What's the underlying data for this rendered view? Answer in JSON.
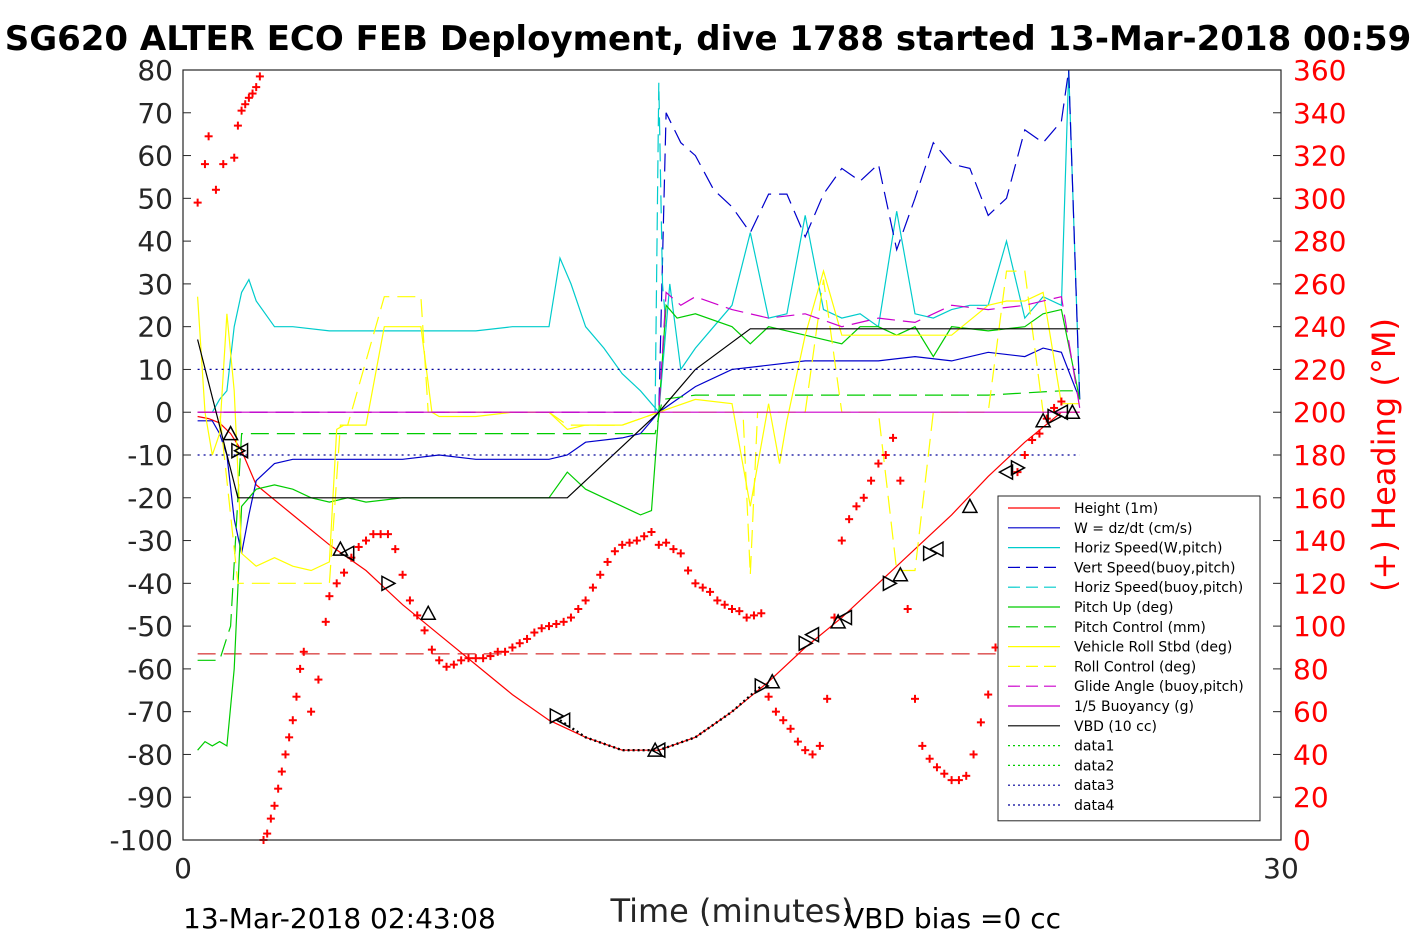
{
  "chart_data": {
    "type": "line",
    "title": "SG620 ALTER ECO FEB Deployment, dive 1788 started 13-Mar-2018 00:59",
    "xlabel": "Time (minutes)",
    "ylabel_right": "(+) Heading (°M)",
    "xlim": [
      0,
      30
    ],
    "ylim_left": [
      -100,
      80
    ],
    "ylim_right": [
      0,
      360
    ],
    "x_ticks": [
      "0",
      "30"
    ],
    "y_ticks_left": [
      "80",
      "70",
      "60",
      "50",
      "40",
      "30",
      "20",
      "10",
      "0",
      "-10",
      "-20",
      "-30",
      "-40",
      "-50",
      "-60",
      "-70",
      "-80",
      "-90",
      "-100"
    ],
    "y_ticks_right": [
      "360",
      "340",
      "320",
      "300",
      "280",
      "260",
      "240",
      "220",
      "200",
      "180",
      "160",
      "140",
      "120",
      "100",
      "80",
      "60",
      "40",
      "20",
      "0"
    ],
    "grid": false,
    "legend_position": "right-lower",
    "footer_left": "13-Mar-2018 02:43:08",
    "footer_right": "VBD bias =0 cc",
    "series": [
      {
        "name": "Height (1m)",
        "color": "#ff0000",
        "style": "solid",
        "x": [
          0.4,
          0.7,
          1.0,
          1.3,
          1.6,
          2.0,
          3.0,
          4.0,
          5.0,
          6.0,
          7.0,
          8.0,
          9.0,
          10.0,
          11.0,
          12.0,
          13.0,
          14.0,
          15.0,
          16.0,
          17.0,
          18.0,
          19.0,
          20.0,
          21.0,
          22.0,
          23.0,
          24.0,
          24.5
        ],
        "y": [
          -1,
          -1.5,
          -2.5,
          -5,
          -9,
          -17,
          -24,
          -31,
          -37,
          -45,
          -52,
          -59,
          -66,
          -72,
          -76,
          -79,
          -79,
          -76,
          -70,
          -63,
          -55,
          -48,
          -40,
          -32,
          -24,
          -15,
          -7,
          0,
          0
        ]
      },
      {
        "name": "W = dz/dt (cm/s)",
        "color": "#0000cc",
        "style": "solid",
        "x": [
          0.4,
          0.8,
          1.0,
          1.2,
          1.4,
          1.6,
          1.8,
          2.0,
          2.5,
          3.0,
          4.0,
          5.0,
          6.0,
          7.0,
          8.0,
          9.0,
          10.0,
          10.5,
          11.0,
          12.0,
          12.5,
          13.0,
          14.0,
          15.0,
          16.0,
          17.0,
          18.0,
          19.0,
          20.0,
          21.0,
          22.0,
          23.0,
          23.5,
          24.0,
          24.5
        ],
        "y": [
          -2,
          -2,
          -5,
          -10,
          -25,
          -33,
          -24,
          -16,
          -12,
          -11,
          -11,
          -11,
          -11,
          -10,
          -11,
          -11,
          -11,
          -10,
          -7,
          -6,
          -5,
          0,
          6,
          10,
          11,
          12,
          12,
          12,
          13,
          12,
          14,
          13,
          15,
          14,
          3
        ]
      },
      {
        "name": "Horiz Speed(W,pitch)",
        "color": "#00cccc",
        "style": "solid",
        "x": [
          0.4,
          0.8,
          1.0,
          1.2,
          1.4,
          1.6,
          1.8,
          2.0,
          2.5,
          3.0,
          4.0,
          5.0,
          6.0,
          7.0,
          8.0,
          9.0,
          10.0,
          10.3,
          10.6,
          11.0,
          11.5,
          12.0,
          12.5,
          13.0,
          13.3,
          13.6,
          14.0,
          14.5,
          15.0,
          15.5,
          16.0,
          16.5,
          17.0,
          17.5,
          18.0,
          18.5,
          19.0,
          19.5,
          20.0,
          20.5,
          21.0,
          21.5,
          22.0,
          22.5,
          23.0,
          23.5,
          24.0,
          24.2,
          24.5
        ],
        "y": [
          0,
          0,
          3,
          5,
          20,
          28,
          31,
          26,
          20,
          20,
          19,
          19,
          19,
          19,
          19,
          20,
          20,
          36,
          30,
          20,
          15,
          9,
          5,
          0,
          30,
          10,
          15,
          20,
          25,
          42,
          22,
          23,
          46,
          24,
          22,
          23,
          20,
          47,
          23,
          22,
          24,
          25,
          25,
          40,
          22,
          27,
          25,
          80,
          3
        ]
      },
      {
        "name": "Vert Speed(buoy,pitch)",
        "color": "#0000cc",
        "style": "dashed",
        "x": [
          0.4,
          1.0,
          12.8,
          13.0,
          13.2,
          13.6,
          14.0,
          14.5,
          15.0,
          15.5,
          16.0,
          16.5,
          17.0,
          17.5,
          18.0,
          18.5,
          19.0,
          19.5,
          20.0,
          20.5,
          21.0,
          21.5,
          22.0,
          22.5,
          23.0,
          23.5,
          24.0,
          24.2,
          24.5
        ],
        "y": [
          0,
          0,
          0,
          0,
          70,
          63,
          60,
          52,
          48,
          42,
          51,
          51,
          41,
          51,
          57,
          54,
          58,
          38,
          50,
          63,
          58,
          57,
          46,
          50,
          66,
          63,
          68,
          80,
          3
        ]
      },
      {
        "name": "Horiz Speed(buoy,pitch)",
        "color": "#00cccc",
        "style": "dashed",
        "x": [
          12.9,
          13.0,
          13.1,
          13.2
        ],
        "y": [
          0,
          77,
          30,
          20
        ]
      },
      {
        "name": "Pitch Up (deg)",
        "color": "#00cc00",
        "style": "solid",
        "x": [
          0.4,
          0.6,
          0.8,
          1.0,
          1.2,
          1.4,
          1.6,
          1.8,
          2.0,
          2.5,
          3.0,
          3.5,
          4.0,
          4.5,
          5.0,
          6.0,
          7.0,
          8.0,
          9.0,
          10.0,
          10.5,
          11.0,
          11.5,
          12.0,
          12.5,
          12.8,
          13.0,
          13.2,
          13.5,
          14.0,
          15.0,
          15.5,
          16.0,
          17.0,
          18.0,
          18.5,
          19.0,
          19.5,
          20.0,
          20.5,
          21.0,
          22.0,
          23.0,
          23.5,
          24.0,
          24.5
        ],
        "y": [
          -79,
          -77,
          -78,
          -77,
          -78,
          -60,
          -22,
          -20,
          -18,
          -17,
          -18,
          -20,
          -21,
          -20,
          -21,
          -20,
          -20,
          -20,
          -20,
          -20,
          -14,
          -18,
          -20,
          -22,
          -24,
          -23,
          0,
          25,
          22,
          23,
          20,
          16,
          20,
          18,
          16,
          20,
          20,
          18,
          20,
          13,
          20,
          19,
          20,
          23,
          24,
          3
        ]
      },
      {
        "name": "Pitch Control (mm)",
        "color": "#00cc00",
        "style": "dashed",
        "x": [
          0.4,
          1.0,
          1.3,
          1.6,
          2.0,
          4.0,
          6.0,
          8.0,
          10.0,
          12.0,
          12.9,
          13.1,
          14.0,
          16.0,
          18.0,
          20.0,
          22.0,
          24.0,
          24.5
        ],
        "y": [
          -58,
          -58,
          -50,
          -5,
          -5,
          -5,
          -5,
          -5,
          -5,
          -5,
          -5,
          3,
          4,
          4,
          4,
          4,
          4,
          5,
          5
        ]
      },
      {
        "name": "Vehicle Roll Stbd (deg)",
        "color": "#ffff00",
        "style": "solid",
        "x": [
          0.4,
          0.6,
          0.8,
          1.0,
          1.2,
          1.4,
          1.6,
          2.0,
          2.5,
          3.0,
          3.5,
          4.0,
          4.2,
          4.4,
          5.0,
          5.5,
          6.0,
          6.5,
          6.8,
          7.0,
          8.0,
          9.0,
          10.0,
          10.5,
          11.0,
          12.0,
          13.0,
          14.0,
          15.0,
          15.5,
          16.0,
          16.3,
          16.5,
          17.0,
          17.5,
          18.0,
          19.0,
          19.5,
          20.0,
          20.5,
          21.0,
          22.0,
          22.5,
          23.0,
          23.5,
          24.0,
          24.5
        ],
        "y": [
          27,
          0,
          -10,
          -5,
          23,
          5,
          -33,
          -36,
          -34,
          -36,
          -37,
          -35,
          -4,
          -3,
          -3,
          20,
          20,
          20,
          0,
          -1,
          -1,
          0,
          0,
          -4,
          -3,
          -3,
          0,
          3,
          2,
          -22,
          2,
          -12,
          -2,
          18,
          33,
          18,
          18,
          18,
          18,
          18,
          18,
          25,
          26,
          26,
          28,
          2,
          2
        ]
      },
      {
        "name": "Roll Control (deg)",
        "color": "#ffff00",
        "style": "dashed",
        "x": [
          0.4,
          1.0,
          1.5,
          2.0,
          3.0,
          4.0,
          4.3,
          4.5,
          5.5,
          6.0,
          6.5,
          6.7,
          7.0,
          8.0,
          9.0,
          10.0,
          10.5,
          11.0,
          12.0,
          13.0,
          14.0,
          15.0,
          15.3,
          15.5,
          15.7,
          16.0,
          17.0,
          17.5,
          18.0,
          19.0,
          19.5,
          20.0,
          20.5,
          21.0,
          22.0,
          22.5,
          23.0,
          23.5,
          24.0,
          24.5
        ],
        "y": [
          0,
          0,
          -40,
          -40,
          -40,
          -40,
          -3,
          -3,
          27,
          27,
          27,
          0,
          0,
          0,
          0,
          0,
          -3,
          -3,
          -3,
          0,
          0,
          0,
          0,
          -38,
          0,
          0,
          0,
          31,
          0,
          0,
          -37,
          -37,
          0,
          0,
          0,
          33,
          33,
          0,
          0,
          0
        ]
      },
      {
        "name": "Glide Angle (buoy,pitch)",
        "color": "#cc00cc",
        "style": "dashed",
        "x": [
          0.4,
          13.0,
          13.2,
          13.6,
          14.0,
          15.0,
          16.0,
          17.0,
          18.0,
          19.0,
          20.0,
          21.0,
          22.0,
          23.0,
          24.0,
          24.5
        ],
        "y": [
          0,
          0,
          28,
          25,
          27,
          24,
          22,
          23,
          20,
          22,
          21,
          25,
          24,
          25,
          27,
          1
        ]
      },
      {
        "name": "1/5 Buoyancy (g)",
        "color": "#cc00cc",
        "style": "solid",
        "x": [
          0.4,
          24.5
        ],
        "y": [
          0,
          0
        ]
      },
      {
        "name": "VBD (10 cc)",
        "color": "#000000",
        "style": "solid",
        "x": [
          0.4,
          1.5,
          3.0,
          5.0,
          8.0,
          10.5,
          11.5,
          13.0,
          14.0,
          15.5,
          17.0,
          20.0,
          24.5
        ],
        "y": [
          17,
          -20,
          -20,
          -20,
          -20,
          -20,
          -12,
          0,
          10,
          19.5,
          19.5,
          19.5,
          19.5
        ]
      },
      {
        "name": "data1",
        "color": "#00cc00",
        "style": "dotted",
        "x": [],
        "y": []
      },
      {
        "name": "data2",
        "color": "#00cc00",
        "style": "dotted",
        "x": [],
        "y": []
      },
      {
        "name": "data3",
        "color": "#000099",
        "style": "dotted",
        "x": [
          0.4,
          24.5
        ],
        "y": [
          10,
          10
        ]
      },
      {
        "name": "data4",
        "color": "#000099",
        "style": "dotted",
        "x": [
          0.4,
          24.5
        ],
        "y": [
          -10,
          -10
        ]
      }
    ],
    "reference_line": {
      "color": "#cc0000",
      "style": "dashed",
      "y": -56.5
    },
    "dotted_overlay": {
      "color": "#000000",
      "x": [
        10.3,
        11.0,
        12.0,
        13.0,
        14.0,
        15.0,
        15.8
      ],
      "y": [
        -72,
        -76,
        -79,
        -79,
        -76,
        -70,
        -64
      ]
    },
    "heading_markers": {
      "color": "#ff0000",
      "marker": "+",
      "x": [
        0.4,
        0.6,
        0.7,
        0.9,
        1.1,
        1.4,
        1.5,
        1.6,
        1.7,
        1.8,
        1.9,
        2.0,
        2.1,
        2.2,
        2.3,
        2.4,
        2.5,
        2.6,
        2.7,
        2.8,
        2.9,
        3.0,
        3.1,
        3.2,
        3.3,
        3.5,
        3.7,
        3.9,
        4.0,
        4.2,
        4.4,
        4.6,
        4.8,
        5.0,
        5.2,
        5.4,
        5.6,
        5.8,
        6.0,
        6.2,
        6.4,
        6.6,
        6.8,
        7.0,
        7.2,
        7.4,
        7.6,
        7.8,
        8.0,
        8.2,
        8.4,
        8.6,
        8.8,
        9.0,
        9.2,
        9.4,
        9.6,
        9.8,
        10.0,
        10.2,
        10.4,
        10.6,
        10.8,
        11.0,
        11.2,
        11.4,
        11.6,
        11.8,
        12.0,
        12.2,
        12.4,
        12.6,
        12.8,
        13.0,
        13.2,
        13.4,
        13.6,
        13.8,
        14.0,
        14.2,
        14.4,
        14.6,
        14.8,
        15.0,
        15.2,
        15.4,
        15.6,
        15.8,
        16.0,
        16.2,
        16.4,
        16.6,
        16.8,
        17.0,
        17.2,
        17.4,
        17.6,
        17.8,
        18.0,
        18.2,
        18.4,
        18.6,
        18.8,
        19.0,
        19.2,
        19.4,
        19.6,
        19.8,
        20.0,
        20.2,
        20.4,
        20.6,
        20.8,
        21.0,
        21.2,
        21.4,
        21.6,
        21.8,
        22.0,
        22.2,
        22.4,
        22.6,
        22.8,
        23.0,
        23.2,
        23.4,
        23.6,
        23.8,
        24.0
      ],
      "y": [
        298,
        316,
        329,
        304,
        316,
        319,
        334,
        341,
        344,
        347,
        349,
        352,
        357,
        0,
        3,
        10,
        16,
        24,
        32,
        40,
        48,
        56,
        67,
        80,
        88,
        60,
        75,
        102,
        114,
        120,
        125,
        132,
        137,
        140,
        143,
        143,
        143,
        136,
        124,
        112,
        105,
        98,
        89,
        84,
        81,
        82,
        84,
        85,
        85,
        85,
        86,
        88,
        88,
        90,
        92,
        94,
        97,
        99,
        100,
        101,
        102,
        104,
        108,
        112,
        118,
        124,
        130,
        135,
        138,
        139,
        140,
        142,
        144,
        138,
        139,
        136,
        134,
        126,
        120,
        118,
        116,
        112,
        110,
        108,
        107,
        104,
        105,
        106,
        67,
        60,
        56,
        52,
        46,
        42,
        40,
        44,
        66,
        104,
        140,
        150,
        156,
        160,
        168,
        176,
        180,
        188,
        168,
        108,
        66,
        44,
        38,
        34,
        31,
        28,
        28,
        30,
        40,
        55,
        68,
        90,
        112,
        140,
        172,
        180,
        187,
        190,
        197,
        202,
        205
      ]
    },
    "triangle_markers": {
      "color": "#000000",
      "x": [
        1.3,
        1.5,
        1.6,
        4.3,
        4.5,
        5.6,
        6.7,
        10.2,
        10.4,
        12.9,
        13.0,
        15.8,
        16.1,
        17.0,
        17.2,
        17.9,
        18.1,
        19.3,
        19.6,
        20.4,
        20.6,
        21.5,
        22.5,
        22.8,
        23.5,
        23.8,
        24.0,
        24.3
      ],
      "y": [
        -5,
        -9,
        -9,
        -32,
        -33,
        -40,
        -47,
        -71,
        -72,
        -79,
        -79,
        -64,
        -63,
        -54,
        -52,
        -49,
        -48,
        -40,
        -38,
        -33,
        -32,
        -22,
        -14,
        -13,
        -2,
        -1,
        0,
        0
      ]
    }
  }
}
